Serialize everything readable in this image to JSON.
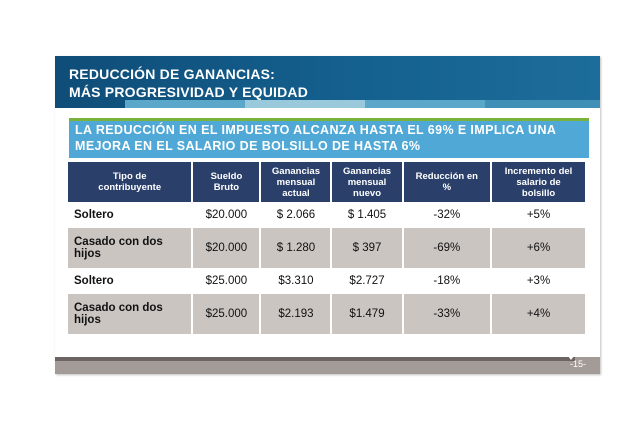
{
  "header": {
    "line1": "REDUCCIÓN DE GANANCIAS:",
    "line2": "MÁS PROGRESIVIDAD Y EQUIDAD"
  },
  "callout": {
    "line1": "LA REDUCCIÓN EN EL IMPUESTO ALCANZA HASTA EL 69% E IMPLICA UNA",
    "line2": "MEJORA EN EL SALARIO DE BOLSILLO DE HASTA 6%"
  },
  "table": {
    "headers": [
      [
        "Tipo de",
        "contribuyente"
      ],
      [
        "Sueldo",
        "Bruto"
      ],
      [
        "Ganancias",
        "mensual",
        "actual"
      ],
      [
        "Ganancias",
        "mensual",
        "nuevo"
      ],
      [
        "Reducción en",
        "%"
      ],
      [
        "Incremento del",
        "salario de",
        "bolsillo"
      ]
    ],
    "rows": [
      {
        "tipo": [
          "Soltero"
        ],
        "sueldo": "$20.000",
        "actual": "$ 2.066",
        "nuevo": "$ 1.405",
        "reduccion": "-32%",
        "incremento": "+5%"
      },
      {
        "tipo": [
          "Casado con dos",
          "hijos"
        ],
        "sueldo": "$20.000",
        "actual": "$ 1.280",
        "nuevo": "$ 397",
        "reduccion": "-69%",
        "incremento": "+6%"
      },
      {
        "tipo": [
          "Soltero"
        ],
        "sueldo": "$25.000",
        "actual": "$3.310",
        "nuevo": "$2.727",
        "reduccion": "-18%",
        "incremento": "+3%"
      },
      {
        "tipo": [
          "Casado con dos",
          "hijos"
        ],
        "sueldo": "$25.000",
        "actual": "$2.193",
        "nuevo": "$1.479",
        "reduccion": "-33%",
        "incremento": "+4%"
      }
    ]
  },
  "footer": {
    "page_number": "-15-"
  },
  "colors": {
    "header_bg": "#14608f",
    "callout_bg": "#4fa8d6",
    "table_header_bg": "#2a3f6a",
    "row_shade": "#cbc5c2",
    "footer_bg": "#a39b98"
  }
}
